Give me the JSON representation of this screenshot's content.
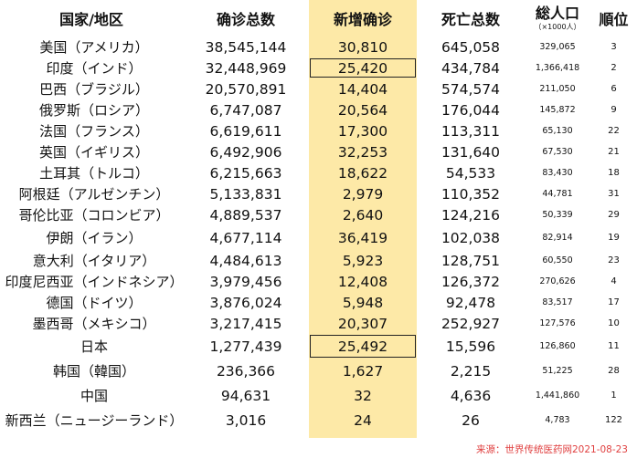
{
  "headers": {
    "country": "国家/地区",
    "cases": "确诊总数",
    "new_cases": "新增确诊",
    "deaths": "死亡总数",
    "population": "総人口",
    "population_unit": "（×1000人）",
    "rank": "順位"
  },
  "rows": [
    {
      "name": "美国（アメリカ）",
      "cases": "38,545,144",
      "new": "30,810",
      "deaths": "645,058",
      "pop": "329,065",
      "rank": "3",
      "boxed": false
    },
    {
      "name": "印度（インド）",
      "cases": "32,448,969",
      "new": "25,420",
      "deaths": "434,784",
      "pop": "1,366,418",
      "rank": "2",
      "boxed": true
    },
    {
      "name": "巴西（ブラジル）",
      "cases": "20,570,891",
      "new": "14,404",
      "deaths": "574,574",
      "pop": "211,050",
      "rank": "6",
      "boxed": false
    },
    {
      "name": "俄罗斯（ロシア）",
      "cases": "6,747,087",
      "new": "20,564",
      "deaths": "176,044",
      "pop": "145,872",
      "rank": "9",
      "boxed": false
    },
    {
      "name": "法国（フランス）",
      "cases": "6,619,611",
      "new": "17,300",
      "deaths": "113,311",
      "pop": "65,130",
      "rank": "22",
      "boxed": false
    },
    {
      "name": "英国（イギリス）",
      "cases": "6,492,906",
      "new": "32,253",
      "deaths": "131,640",
      "pop": "67,530",
      "rank": "21",
      "boxed": false
    },
    {
      "name": "土耳其（トルコ）",
      "cases": "6,215,663",
      "new": "18,622",
      "deaths": "54,533",
      "pop": "83,430",
      "rank": "18",
      "boxed": false
    },
    {
      "name": "阿根廷（アルゼンチン）",
      "cases": "5,133,831",
      "new": "2,979",
      "deaths": "110,352",
      "pop": "44,781",
      "rank": "31",
      "boxed": false
    },
    {
      "name": "哥伦比亚（コロンビア）",
      "cases": "4,889,537",
      "new": "2,640",
      "deaths": "124,216",
      "pop": "50,339",
      "rank": "29",
      "boxed": false
    },
    {
      "name": "伊朗（イラン）",
      "cases": "4,677,114",
      "new": "36,419",
      "deaths": "102,038",
      "pop": "82,914",
      "rank": "19",
      "boxed": false
    },
    {
      "name": "意大利（イタリア）",
      "cases": "4,484,613",
      "new": "5,923",
      "deaths": "128,751",
      "pop": "60,550",
      "rank": "23",
      "boxed": false
    },
    {
      "name": "印度尼西亚（インドネシア）",
      "cases": "3,979,456",
      "new": "12,408",
      "deaths": "126,372",
      "pop": "270,626",
      "rank": "4",
      "boxed": false
    },
    {
      "name": "德国（ドイツ）",
      "cases": "3,876,024",
      "new": "5,948",
      "deaths": "92,478",
      "pop": "83,517",
      "rank": "17",
      "boxed": false
    },
    {
      "name": "墨西哥（メキシコ）",
      "cases": "3,217,415",
      "new": "20,307",
      "deaths": "252,927",
      "pop": "127,576",
      "rank": "10",
      "boxed": false
    },
    {
      "name": "日本",
      "cases": "1,277,439",
      "new": "25,492",
      "deaths": "15,596",
      "pop": "126,860",
      "rank": "11",
      "boxed": true
    },
    {
      "name": "韩国（韓国）",
      "cases": "236,366",
      "new": "1,627",
      "deaths": "2,215",
      "pop": "51,225",
      "rank": "28",
      "boxed": false
    },
    {
      "name": "中国",
      "cases": "94,631",
      "new": "32",
      "deaths": "4,636",
      "pop": "1,441,860",
      "rank": "1",
      "boxed": false
    },
    {
      "name": "新西兰（ニュージーランド）",
      "cases": "3,016",
      "new": "24",
      "deaths": "26",
      "pop": "4,783",
      "rank": "122",
      "boxed": false
    }
  ],
  "source": "来源：世界传统医药网2021-08-23",
  "colors": {
    "new_cases_bg": "#fde9a7",
    "source_text": "#e04040"
  }
}
